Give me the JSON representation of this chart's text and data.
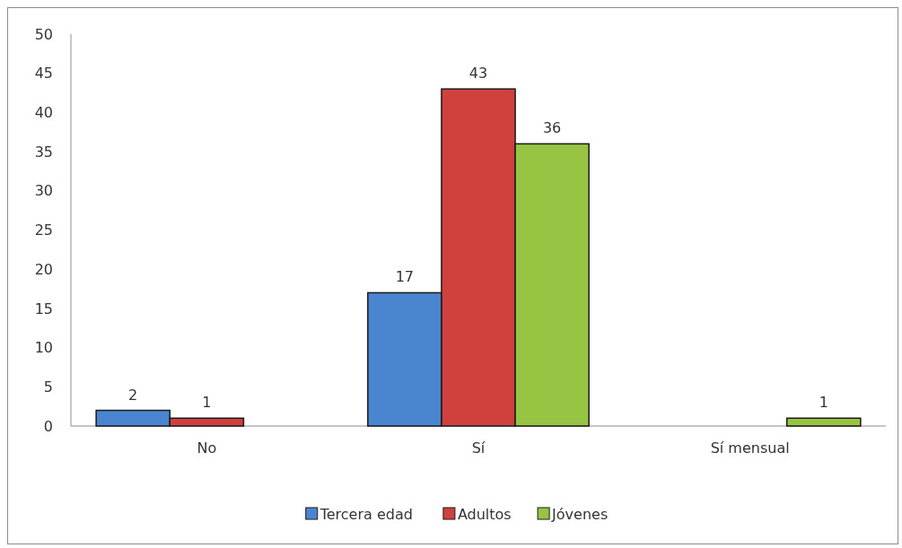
{
  "chart_data": {
    "type": "bar",
    "categories": [
      "No",
      "Sí",
      "Sí mensual"
    ],
    "series": [
      {
        "name": "Tercera edad",
        "color": "#4a86d0",
        "values": [
          2,
          17,
          null
        ]
      },
      {
        "name": "Adultos",
        "color": "#d0403c",
        "values": [
          1,
          43,
          null
        ]
      },
      {
        "name": "Jóvenes",
        "color": "#98c444",
        "values": [
          null,
          36,
          1
        ]
      }
    ],
    "ylim": [
      0,
      50
    ],
    "yticks": [
      0,
      5,
      10,
      15,
      20,
      25,
      30,
      35,
      40,
      45,
      50
    ],
    "data_labels": true,
    "legend": "bottom"
  }
}
